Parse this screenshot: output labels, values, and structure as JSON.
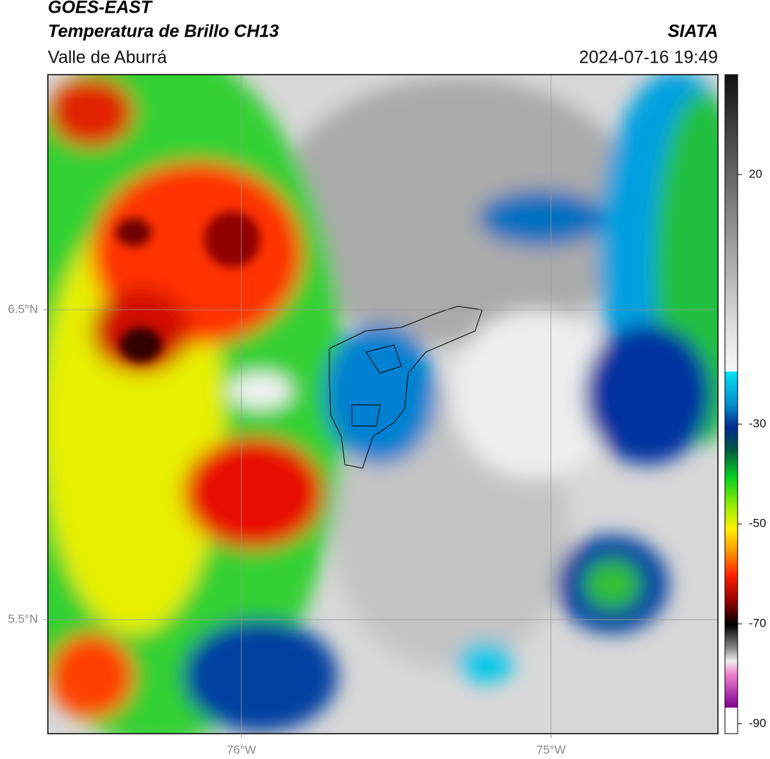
{
  "header": {
    "title": "GOES-EAST",
    "subtitle": "Temperatura de Brillo CH13",
    "region": "Valle de Aburrá",
    "source": "SIATA",
    "datetime": "2024-07-16 19:49"
  },
  "map": {
    "xlim": [
      -76.625,
      -74.461
    ],
    "ylim": [
      5.132,
      7.259
    ],
    "xticks": [
      {
        "value": -76,
        "label": "76°W"
      },
      {
        "value": -75,
        "label": "75°W"
      }
    ],
    "yticks": [
      {
        "value": 6.5,
        "label": "6.5°N"
      },
      {
        "value": 5.5,
        "label": "5.5°N"
      }
    ],
    "grid": true
  },
  "colorbar": {
    "lim": [
      -92,
      40
    ],
    "ticks": [
      20,
      -30,
      -50,
      -70,
      -90
    ]
  }
}
